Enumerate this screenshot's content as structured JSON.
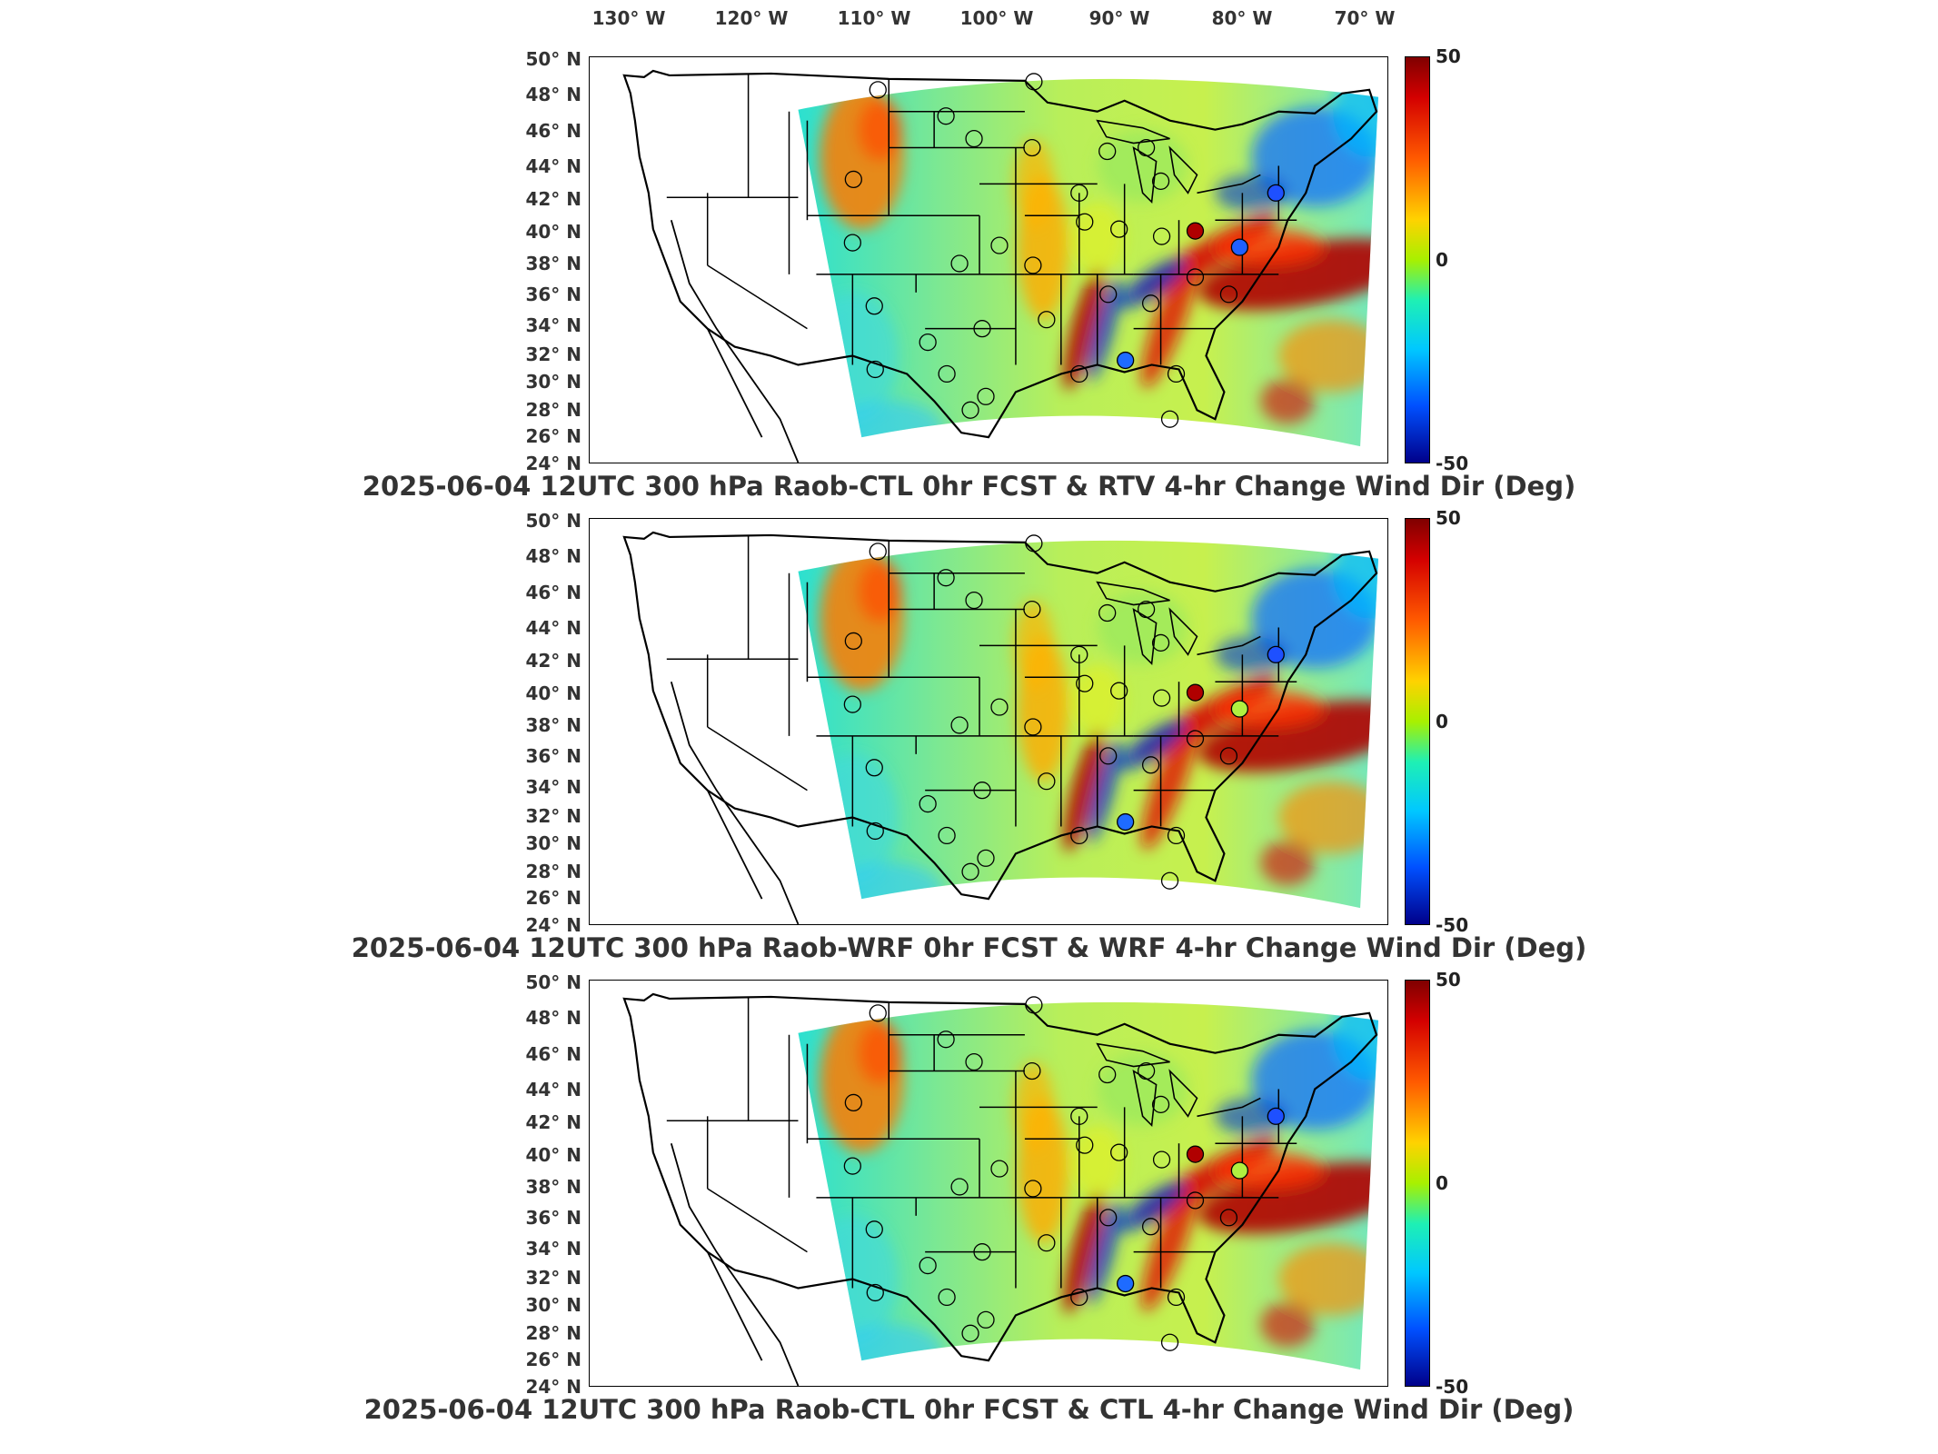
{
  "longitude_labels": [
    "130° W",
    "120° W",
    "110° W",
    "100° W",
    "90° W",
    "80° W",
    "70° W"
  ],
  "latitude_labels": [
    "50° N",
    "48° N",
    "46° N",
    "44° N",
    "42° N",
    "40° N",
    "38° N",
    "36° N",
    "34° N",
    "32° N",
    "30° N",
    "28° N",
    "26° N",
    "24° N"
  ],
  "colorbar": {
    "max_label": "50",
    "mid_label": "0",
    "min_label": "-50",
    "range": [
      -50,
      50
    ],
    "colormap": "jet"
  },
  "panels": [
    {
      "title": "2025-06-04 12UTC 300 hPa Raob-CTL 0hr FCST & RTV 4-hr Change Wind Dir (Deg)"
    },
    {
      "title": "2025-06-04 12UTC 300 hPa Raob-WRF 0hr FCST & WRF 4-hr Change Wind Dir (Deg)"
    },
    {
      "title": "2025-06-04 12UTC 300 hPa Raob-CTL 0hr FCST & CTL 4-hr Change Wind Dir (Deg)"
    }
  ],
  "colors": {
    "hot": "#b00000",
    "warm": "#ff7a00",
    "neutral": "#a8f000",
    "cool": "#00c8ff",
    "cold": "#0030d0",
    "border": "#000000"
  }
}
